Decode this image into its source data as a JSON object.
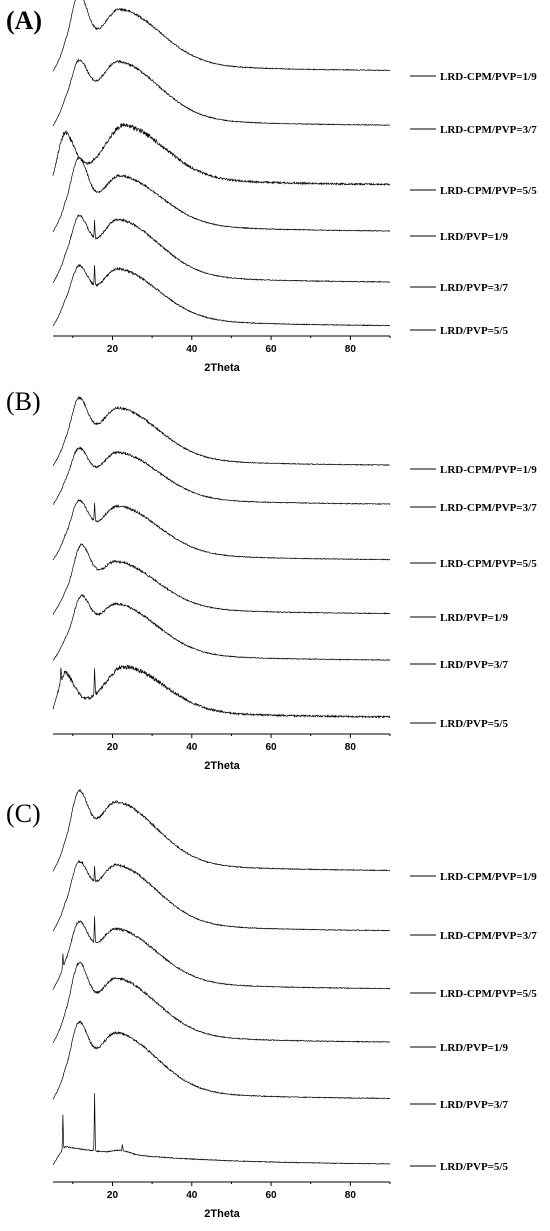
{
  "chart_data": [
    {
      "type": "line",
      "panel_label": "(A)",
      "xlabel": "2Theta",
      "ylabel": "",
      "xlim": [
        5,
        90
      ],
      "xticks": [
        20,
        40,
        60,
        80
      ],
      "grid": false,
      "legend_placement": "right, one label per trace",
      "series": [
        {
          "name": "LRD-CPM/PVP=1/9",
          "peaks": [
            [
              11.5,
              1.0
            ],
            [
              22,
              0.88
            ]
          ],
          "spikes": [],
          "tail": 0.08
        },
        {
          "name": "LRD-CPM/PVP=3/7",
          "peaks": [
            [
              11.5,
              0.78
            ],
            [
              21.5,
              0.92
            ]
          ],
          "spikes": [],
          "tail": 0.05
        },
        {
          "name": "LRD-CPM/PVP=5/5",
          "peaks": [
            [
              8,
              0.6
            ],
            [
              23,
              0.85
            ]
          ],
          "spikes": [],
          "tail": 0.08
        },
        {
          "name": "LRD/PVP=1/9",
          "peaks": [
            [
              11.5,
              0.95
            ],
            [
              22,
              0.78
            ]
          ],
          "spikes": [],
          "tail": 0.07
        },
        {
          "name": "LRD/PVP=3/7",
          "peaks": [
            [
              11.5,
              0.8
            ],
            [
              21.5,
              0.9
            ]
          ],
          "spikes": [
            [
              15.5,
              0.3
            ]
          ],
          "tail": 0.07
        },
        {
          "name": "LRD/PVP=5/5",
          "peaks": [
            [
              11.5,
              0.7
            ],
            [
              21.5,
              0.8
            ]
          ],
          "spikes": [
            [
              15.5,
              0.35
            ]
          ],
          "tail": 0.06
        }
      ]
    },
    {
      "type": "line",
      "panel_label": "(B)",
      "xlabel": "2Theta",
      "ylabel": "",
      "xlim": [
        5,
        90
      ],
      "xticks": [
        20,
        40,
        60,
        80
      ],
      "grid": false,
      "legend_placement": "right, one label per trace",
      "series": [
        {
          "name": "LRD-CPM/PVP=1/9",
          "peaks": [
            [
              11.5,
              0.95
            ],
            [
              21.5,
              0.92
            ]
          ],
          "spikes": [],
          "tail": 0.06
        },
        {
          "name": "LRD-CPM/PVP=3/7",
          "peaks": [
            [
              11.5,
              0.75
            ],
            [
              21.5,
              0.82
            ]
          ],
          "spikes": [],
          "tail": 0.04
        },
        {
          "name": "LRD-CPM/PVP=5/5",
          "peaks": [
            [
              11.5,
              0.8
            ],
            [
              21.5,
              0.85
            ]
          ],
          "spikes": [
            [
              15.5,
              0.35
            ]
          ],
          "tail": 0.05
        },
        {
          "name": "LRD/PVP=1/9",
          "peaks": [
            [
              12,
              0.95
            ],
            [
              21,
              0.82
            ]
          ],
          "spikes": [],
          "tail": 0.05
        },
        {
          "name": "LRD/PVP=3/7",
          "peaks": [
            [
              12,
              0.85
            ],
            [
              21,
              0.9
            ]
          ],
          "spikes": [],
          "tail": 0.06
        },
        {
          "name": "LRD/PVP=5/5",
          "peaks": [
            [
              8,
              0.55
            ],
            [
              23,
              0.8
            ]
          ],
          "spikes": [
            [
              7,
              0.3
            ],
            [
              15.5,
              0.5
            ]
          ],
          "tail": 0.1
        }
      ]
    },
    {
      "type": "line",
      "panel_label": "(C)",
      "xlabel": "2Theta",
      "ylabel": "",
      "xlim": [
        5,
        90
      ],
      "xticks": [
        20,
        40,
        60,
        80
      ],
      "grid": false,
      "legend_placement": "right, one label per trace",
      "series": [
        {
          "name": "LRD-CPM/PVP=1/9",
          "peaks": [
            [
              11.5,
              1.0
            ],
            [
              21,
              1.0
            ]
          ],
          "spikes": [],
          "tail": 0.08
        },
        {
          "name": "LRD-CPM/PVP=3/7",
          "peaks": [
            [
              11.5,
              0.82
            ],
            [
              21,
              0.95
            ]
          ],
          "spikes": [
            [
              15.5,
              0.25
            ]
          ],
          "tail": 0.06
        },
        {
          "name": "LRD-CPM/PVP=5/5",
          "peaks": [
            [
              11.5,
              0.8
            ],
            [
              21,
              0.85
            ]
          ],
          "spikes": [
            [
              7.5,
              0.25
            ],
            [
              15.5,
              0.45
            ]
          ],
          "tail": 0.06
        },
        {
          "name": "LRD/PVP=1/9",
          "peaks": [
            [
              11.5,
              1.0
            ],
            [
              21,
              0.92
            ]
          ],
          "spikes": [],
          "tail": 0.07
        },
        {
          "name": "LRD/PVP=3/7",
          "peaks": [
            [
              11.5,
              0.95
            ],
            [
              21,
              0.95
            ]
          ],
          "spikes": [],
          "tail": 0.08
        },
        {
          "name": "LRD/PVP=5/5",
          "peaks": [
            [
              22,
              0.06
            ]
          ],
          "spikes": [
            [
              7.5,
              0.6
            ],
            [
              15.5,
              1.0
            ],
            [
              22.5,
              0.1
            ]
          ],
          "tail": 0.02
        }
      ]
    }
  ]
}
